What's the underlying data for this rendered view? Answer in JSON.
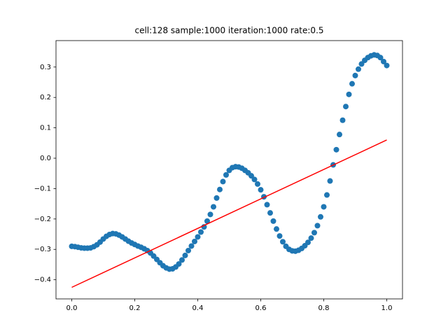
{
  "chart_data": {
    "type": "scatter",
    "title": "cell:128 sample:1000 iteration:1000 rate:0.5",
    "xlim": [
      -0.05,
      1.05
    ],
    "ylim": [
      -0.463,
      0.387
    ],
    "xticks": [
      {
        "value": 0,
        "label": "0.0"
      },
      {
        "value": 0.2,
        "label": "0.2"
      },
      {
        "value": 0.4,
        "label": "0.4"
      },
      {
        "value": 0.6,
        "label": "0.6"
      },
      {
        "value": 0.8,
        "label": "0.8"
      },
      {
        "value": 1,
        "label": "1.0"
      }
    ],
    "yticks": [
      {
        "value": -0.4,
        "label": "−0.4"
      },
      {
        "value": -0.3,
        "label": "−0.3"
      },
      {
        "value": -0.2,
        "label": "−0.2"
      },
      {
        "value": -0.1,
        "label": "−0.1"
      },
      {
        "value": 0,
        "label": "0.0"
      },
      0.1,
      0.2,
      0.3
    ],
    "series": [
      {
        "mode": "markers",
        "color": "#1f77b4",
        "x": [
          0,
          0.01,
          0.02,
          0.03,
          0.04,
          0.05,
          0.06,
          0.07,
          0.08,
          0.09,
          0.1,
          0.11,
          0.12,
          0.13,
          0.14,
          0.15,
          0.16,
          0.17,
          0.18,
          0.19,
          0.2,
          0.21,
          0.22,
          0.23,
          0.24,
          0.25,
          0.26,
          0.27,
          0.28,
          0.29,
          0.3,
          0.31,
          0.32,
          0.33,
          0.34,
          0.35,
          0.36,
          0.37,
          0.38,
          0.39,
          0.4,
          0.41,
          0.42,
          0.43,
          0.44,
          0.45,
          0.46,
          0.47,
          0.48,
          0.49,
          0.5,
          0.51,
          0.52,
          0.53,
          0.54,
          0.55,
          0.56,
          0.57,
          0.58,
          0.59,
          0.6,
          0.61,
          0.62,
          0.63,
          0.64,
          0.65,
          0.66,
          0.67,
          0.68,
          0.69,
          0.7,
          0.71,
          0.72,
          0.73,
          0.74,
          0.75,
          0.76,
          0.77,
          0.78,
          0.79,
          0.8,
          0.81,
          0.82,
          0.83,
          0.84,
          0.85,
          0.86,
          0.87,
          0.88,
          0.89,
          0.9,
          0.91,
          0.92,
          0.93,
          0.94,
          0.95,
          0.96,
          0.97,
          0.98,
          0.99,
          1
        ],
        "values": [
          -0.29,
          -0.291,
          -0.293,
          -0.295,
          -0.296,
          -0.296,
          -0.295,
          -0.291,
          -0.285,
          -0.276,
          -0.266,
          -0.257,
          -0.251,
          -0.248,
          -0.249,
          -0.253,
          -0.259,
          -0.266,
          -0.273,
          -0.279,
          -0.284,
          -0.289,
          -0.293,
          -0.298,
          -0.304,
          -0.312,
          -0.322,
          -0.333,
          -0.344,
          -0.354,
          -0.361,
          -0.365,
          -0.364,
          -0.358,
          -0.348,
          -0.335,
          -0.32,
          -0.304,
          -0.289,
          -0.274,
          -0.259,
          -0.243,
          -0.226,
          -0.207,
          -0.185,
          -0.16,
          -0.131,
          -0.103,
          -0.077,
          -0.055,
          -0.04,
          -0.031,
          -0.028,
          -0.029,
          -0.033,
          -0.04,
          -0.048,
          -0.058,
          -0.07,
          -0.085,
          -0.104,
          -0.127,
          -0.153,
          -0.18,
          -0.207,
          -0.233,
          -0.256,
          -0.275,
          -0.29,
          -0.3,
          -0.305,
          -0.306,
          -0.303,
          -0.297,
          -0.288,
          -0.277,
          -0.263,
          -0.245,
          -0.222,
          -0.193,
          -0.16,
          -0.121,
          -0.075,
          -0.022,
          0.028,
          0.078,
          0.125,
          0.17,
          0.21,
          0.245,
          0.272,
          0.293,
          0.31,
          0.322,
          0.331,
          0.337,
          0.34,
          0.338,
          0.331,
          0.318,
          0.305
        ]
      },
      {
        "mode": "line",
        "color": "#ff0000",
        "x": [
          0,
          1
        ],
        "values": [
          -0.425,
          0.06
        ]
      }
    ]
  }
}
